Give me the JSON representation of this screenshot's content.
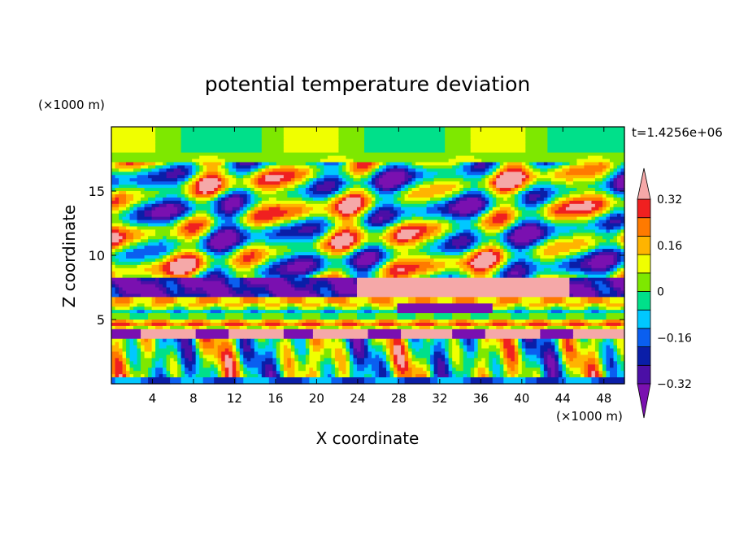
{
  "chart_data": {
    "type": "heatmap",
    "title": "potential temperature deviation",
    "xlabel": "X coordinate",
    "ylabel": "Z coordinate",
    "x_unit": "(×1000 m)",
    "y_unit": "(×1000 m)",
    "time_label": "t=1.4256e+06",
    "xlim": [
      0,
      50
    ],
    "ylim": [
      0,
      20
    ],
    "x_ticks": [
      4,
      8,
      12,
      16,
      20,
      24,
      28,
      32,
      36,
      40,
      44,
      48
    ],
    "y_ticks": [
      5,
      10,
      15
    ],
    "colorbar": {
      "levels": [
        -0.4,
        -0.32,
        -0.24,
        -0.16,
        -0.08,
        0,
        0.08,
        0.16,
        0.24,
        0.32,
        0.4
      ],
      "labels": [
        "0.32",
        "0.16",
        "0",
        "−0.16",
        "−0.32"
      ],
      "label_values": [
        0.32,
        0.16,
        0,
        -0.16,
        -0.32
      ],
      "colors": [
        "#7a10b0",
        "#4b0fa6",
        "#0a1ea8",
        "#0a5ff0",
        "#00c8ff",
        "#00e08a",
        "#7ee800",
        "#f0ff00",
        "#ffb400",
        "#ff7a00",
        "#f02020",
        "#f5a8a8"
      ],
      "extend": "both"
    },
    "field_description": "Sheared wave field: alternating positive (pink/red) and negative (purple) anomaly bands tilted in upper levels (z≈8–18 km), strong stratified bands near z≈4–7 km, convective columns below z≈4 km; large positive anomaly region x≈25–44 km, z≈6–9.5 km."
  }
}
